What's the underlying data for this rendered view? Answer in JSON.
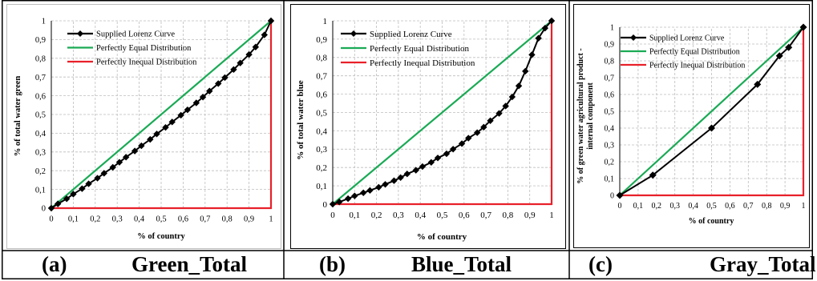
{
  "captions": [
    {
      "letter": "(a)",
      "name": "Green_Total"
    },
    {
      "letter": "(b)",
      "name": "Blue_Total"
    },
    {
      "letter": "(c)",
      "name": "Gray_Total"
    }
  ],
  "colors": {
    "lorenz": "#000000",
    "equal": "#1aaa55",
    "inequal": "#e8202a",
    "grid": "#bdbdbd"
  },
  "chart_data": [
    {
      "type": "line",
      "xlabel": "% of country",
      "ylabel": "% of total water green",
      "xlim": [
        0,
        1
      ],
      "ylim": [
        0,
        1
      ],
      "x_ticks": [
        "0",
        "0,1",
        "0,2",
        "0,3",
        "0,4",
        "0,5",
        "0,6",
        "0,7",
        "0,8",
        "0,9",
        "1"
      ],
      "y_ticks": [
        "0",
        "0,1",
        "0,2",
        "0,3",
        "0,4",
        "0,5",
        "0,6",
        "0,7",
        "0,8",
        "0,9",
        "1"
      ],
      "grid": true,
      "legend_position": "top-left",
      "series": [
        {
          "name": "Supplied Lorenz Curve",
          "marker": "diamond",
          "x": [
            0,
            0.03,
            0.07,
            0.1,
            0.14,
            0.17,
            0.21,
            0.24,
            0.28,
            0.31,
            0.34,
            0.38,
            0.41,
            0.45,
            0.48,
            0.52,
            0.55,
            0.59,
            0.62,
            0.66,
            0.69,
            0.72,
            0.76,
            0.79,
            0.83,
            0.86,
            0.9,
            0.93,
            0.97,
            1
          ],
          "y": [
            0,
            0.023,
            0.05,
            0.075,
            0.104,
            0.13,
            0.16,
            0.186,
            0.218,
            0.245,
            0.272,
            0.305,
            0.333,
            0.367,
            0.396,
            0.431,
            0.46,
            0.496,
            0.525,
            0.562,
            0.593,
            0.625,
            0.665,
            0.697,
            0.74,
            0.775,
            0.82,
            0.86,
            0.925,
            1
          ]
        },
        {
          "name": "Perfectly Equal Distribution",
          "x": [
            0,
            1
          ],
          "y": [
            0,
            1
          ]
        },
        {
          "name": "Perfectly Inequal Distribution",
          "x": [
            0,
            1,
            1
          ],
          "y": [
            0,
            0,
            1
          ]
        }
      ]
    },
    {
      "type": "line",
      "xlabel": "% of country",
      "ylabel": "% of  total water blue",
      "xlim": [
        0,
        1
      ],
      "ylim": [
        0,
        1
      ],
      "x_ticks": [
        "0",
        "0,1",
        "0,2",
        "0,3",
        "0,4",
        "0,5",
        "0,6",
        "0,7",
        "0,8",
        "0,9",
        "1"
      ],
      "y_ticks": [
        "0",
        "0,1",
        "0,2",
        "0,3",
        "0,4",
        "0,5",
        "0,6",
        "0,7",
        "0,8",
        "0,9",
        "1"
      ],
      "grid": true,
      "legend_position": "top-left",
      "series": [
        {
          "name": "Supplied Lorenz Curve",
          "marker": "diamond",
          "x": [
            0,
            0.03,
            0.07,
            0.1,
            0.14,
            0.17,
            0.21,
            0.24,
            0.28,
            0.31,
            0.34,
            0.38,
            0.41,
            0.45,
            0.48,
            0.52,
            0.55,
            0.59,
            0.62,
            0.66,
            0.69,
            0.72,
            0.76,
            0.79,
            0.82,
            0.85,
            0.88,
            0.91,
            0.94,
            0.97,
            1
          ],
          "y": [
            0,
            0.012,
            0.03,
            0.045,
            0.062,
            0.075,
            0.092,
            0.108,
            0.128,
            0.145,
            0.165,
            0.185,
            0.205,
            0.228,
            0.252,
            0.275,
            0.3,
            0.33,
            0.36,
            0.39,
            0.42,
            0.455,
            0.495,
            0.535,
            0.585,
            0.645,
            0.725,
            0.815,
            0.905,
            0.96,
            1
          ]
        },
        {
          "name": "Perfectly Equal Distribution",
          "x": [
            0,
            1
          ],
          "y": [
            0,
            1
          ]
        },
        {
          "name": "Perfectly Inequal Distribution",
          "x": [
            0,
            1,
            1
          ],
          "y": [
            0,
            0,
            1
          ]
        }
      ]
    },
    {
      "type": "line",
      "xlabel": "% of country",
      "ylabel": "% of green water agricultural product - internal component",
      "xlim": [
        0,
        1
      ],
      "ylim": [
        0,
        1
      ],
      "x_ticks": [
        "0",
        "0,1",
        "0,2",
        "0,3",
        "0,4",
        "0,5",
        "0,6",
        "0,7",
        "0,8",
        "0,9",
        "1"
      ],
      "y_ticks": [
        "0",
        "0,1",
        "0,2",
        "0,3",
        "0,4",
        "0,5",
        "0,6",
        "0,7",
        "0,8",
        "0,9",
        "1"
      ],
      "grid": true,
      "legend_position": "top-left",
      "series": [
        {
          "name": "Supplied Lorenz Curve",
          "marker": "diamond",
          "x": [
            0,
            0.18,
            0.5,
            0.75,
            0.87,
            0.92,
            1
          ],
          "y": [
            0,
            0.12,
            0.4,
            0.66,
            0.83,
            0.88,
            1
          ]
        },
        {
          "name": "Perfectly Equal Distribution",
          "x": [
            0,
            1
          ],
          "y": [
            0,
            1
          ]
        },
        {
          "name": "Perfectly Inequal Distribution",
          "x": [
            0,
            1,
            1
          ],
          "y": [
            0,
            0,
            1
          ]
        }
      ]
    }
  ]
}
